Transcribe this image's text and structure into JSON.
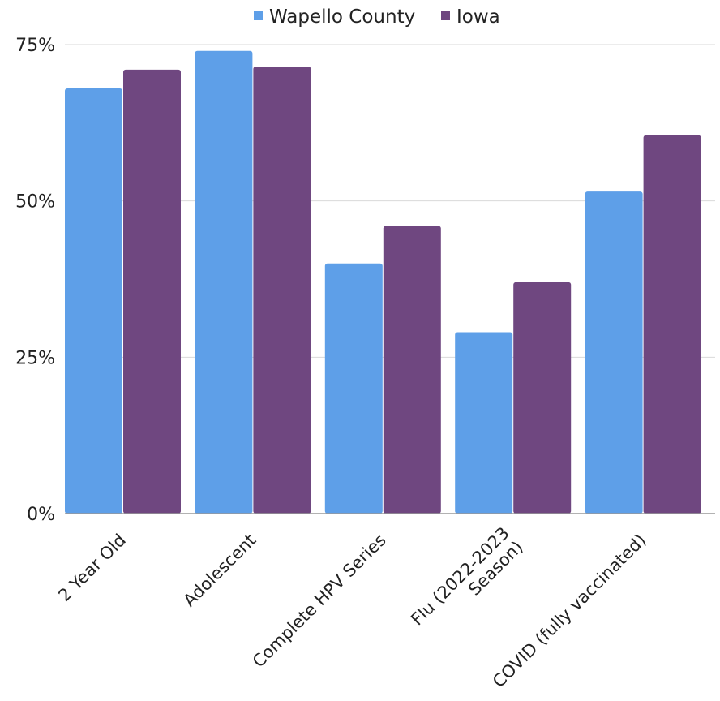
{
  "colors": {
    "wapello": "#5e9fe8",
    "iowa": "#6f4780",
    "grid": "#d9d9d9",
    "axis": "#999999"
  },
  "chart_data": {
    "type": "bar",
    "categories": [
      [
        "2 Year Old"
      ],
      [
        "Adolescent"
      ],
      [
        "Complete HPV Series"
      ],
      [
        "Flu (2022-2023",
        "Season)"
      ],
      [
        "COVID (fully vaccinated)"
      ]
    ],
    "series": [
      {
        "name": "Wapello County",
        "values": [
          68,
          74,
          40,
          29,
          51.5
        ]
      },
      {
        "name": "Iowa",
        "values": [
          71,
          71.5,
          46,
          37,
          60.5
        ]
      }
    ],
    "ylim": [
      0,
      75
    ],
    "yticks": [
      "0%",
      "25%",
      "50%",
      "75%"
    ],
    "ytick_values": [
      0,
      25,
      50,
      75
    ],
    "legend_position": "top",
    "grid": true,
    "title": "",
    "xlabel": "",
    "ylabel": ""
  }
}
